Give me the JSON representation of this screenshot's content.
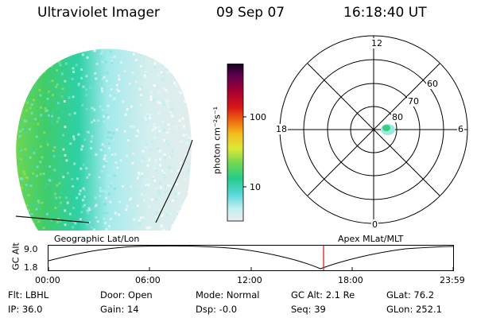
{
  "header": {
    "title": "Ultraviolet Imager",
    "date": "09 Sep 07",
    "time": "16:18:40 UT"
  },
  "colorbar": {
    "unit": "photon cm⁻²s⁻¹",
    "ticks": [
      "100",
      "10"
    ],
    "scale": "log",
    "colors": [
      "#e8e8e8",
      "#bfeef0",
      "#5cd8dc",
      "#28d090",
      "#8ee040",
      "#dfe838",
      "#f0c020",
      "#f06010",
      "#d01010",
      "#a00030",
      "#600050",
      "#200030"
    ]
  },
  "polar_plot": {
    "mlt_labels": {
      "top": "12",
      "left": "18",
      "right": "6",
      "bottom": "0"
    },
    "lat_labels": [
      "60",
      "70",
      "80"
    ]
  },
  "timeline": {
    "axis_label": "GC Alt",
    "y_ticks": [
      "9.0",
      "1.8"
    ],
    "left_label": "Geographic Lat/Lon",
    "right_label": "Apex MLat/MLT",
    "x_ticks": [
      "00:00",
      "06:00",
      "12:00",
      "18:00",
      "23:59"
    ],
    "current_time_marker": "16:18:40",
    "marker_color": "#e02020"
  },
  "info": {
    "flt": "Flt: LBHL",
    "door": "Door: Open",
    "mode": "Mode: Normal",
    "gc_alt": "GC Alt: 2.1 Re",
    "glat": "GLat:  76.2",
    "ip": "IP: 36.0",
    "gain": "Gain: 14",
    "dsp": "Dsp:   -0.0",
    "seq": "Seq: 39",
    "glon": "GLon: 252.1"
  }
}
